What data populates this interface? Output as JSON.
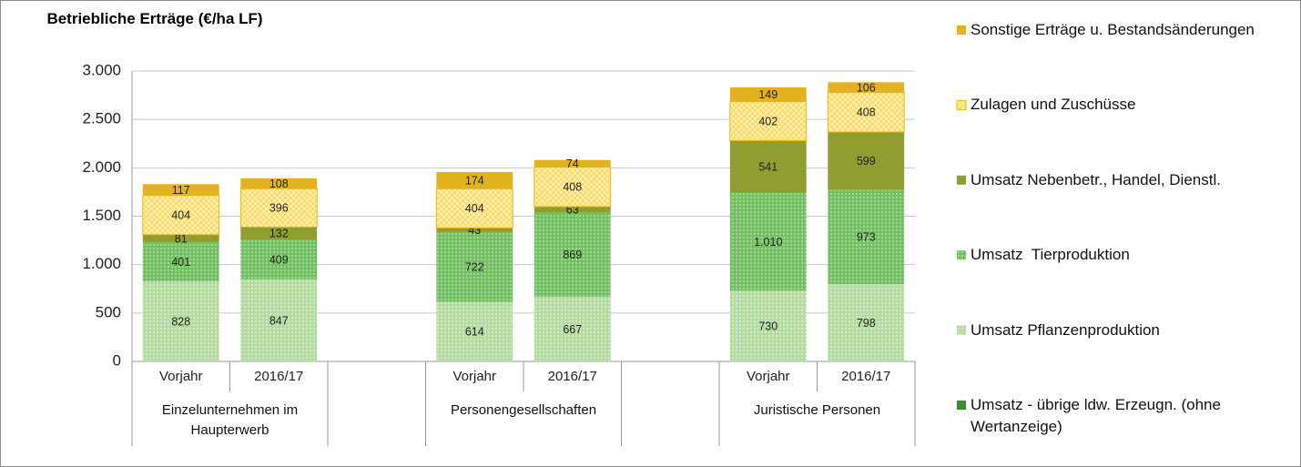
{
  "chart_data": {
    "type": "stacked_bar",
    "title": "Betriebliche Erträge (€/ha LF)",
    "categories": [
      "Vorjahr",
      "2016/17",
      null,
      "Vorjahr",
      "2016/17",
      null,
      "Vorjahr",
      "2016/17"
    ],
    "groups": [
      "Einzelunternehmen im Haupterwerb",
      "Personengesellschaften",
      "Juristische Personen"
    ],
    "ylim": [
      0,
      3000
    ],
    "yticks": [
      0,
      500,
      {
        "value": 1000,
        "label": "1.000"
      },
      {
        "value": 1500,
        "label": "1.500"
      },
      {
        "value": 2000,
        "label": "2.000"
      },
      {
        "value": 2500,
        "label": "2.500"
      },
      {
        "value": 3000,
        "label": "3.000"
      }
    ],
    "grid": true,
    "legend": "right",
    "series": [
      {
        "name": "Umsatz - übrige ldw. Erzeugn. (ohne Wertanzeige)",
        "color": "#3c8a2e",
        "pattern": false,
        "values": [
          null,
          null,
          null,
          null,
          null,
          null,
          null,
          null
        ]
      },
      {
        "name": "Umsatz Pflanzenproduktion",
        "color": "#b5dca0",
        "pattern": true,
        "values": [
          828,
          847,
          null,
          614,
          667,
          null,
          730,
          798
        ]
      },
      {
        "name": "Umsatz  Tierproduktion",
        "color": "#72c160",
        "pattern": true,
        "values": [
          401,
          409,
          null,
          722,
          869,
          null,
          1010,
          973
        ],
        "value_labels": [
          "401",
          "409",
          null,
          "722",
          "869",
          null,
          "1.010",
          "973"
        ]
      },
      {
        "name": "Umsatz Nebenbetr., Handel, Dienstl.",
        "color": "#8f9e2e",
        "pattern": false,
        "values": [
          81,
          132,
          null,
          43,
          63,
          null,
          541,
          599
        ]
      },
      {
        "name": "Zulagen und Zuschüsse",
        "color": "#fdf0a6",
        "pattern": true,
        "values": [
          404,
          396,
          null,
          404,
          408,
          null,
          402,
          408
        ]
      },
      {
        "name": "Sonstige Erträge u. Bestandsänderungen",
        "color": "#e3b21f",
        "pattern": false,
        "values": [
          117,
          108,
          null,
          174,
          74,
          null,
          149,
          106
        ]
      }
    ]
  }
}
